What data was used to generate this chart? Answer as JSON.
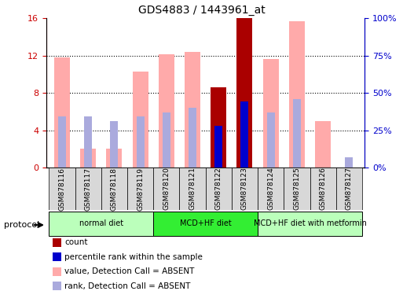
{
  "title": "GDS4883 / 1443961_at",
  "samples": [
    "GSM878116",
    "GSM878117",
    "GSM878118",
    "GSM878119",
    "GSM878120",
    "GSM878121",
    "GSM878122",
    "GSM878123",
    "GSM878124",
    "GSM878125",
    "GSM878126",
    "GSM878127"
  ],
  "value_absent": [
    11.8,
    2.0,
    2.0,
    10.3,
    12.1,
    12.4,
    null,
    null,
    11.6,
    15.7,
    5.0,
    null
  ],
  "rank_absent_pct": [
    34,
    34,
    31,
    34,
    37,
    40,
    null,
    null,
    37,
    46,
    null,
    7
  ],
  "count_present": [
    null,
    null,
    null,
    null,
    null,
    null,
    8.6,
    16.0,
    null,
    null,
    null,
    null
  ],
  "rank_present_pct": [
    null,
    null,
    null,
    null,
    null,
    null,
    28,
    44,
    null,
    null,
    null,
    null
  ],
  "protocol_groups": [
    {
      "label": "normal diet",
      "start": 0,
      "end": 3,
      "color": "#aaffaa"
    },
    {
      "label": "MCD+HF diet",
      "start": 4,
      "end": 7,
      "color": "#00ee00"
    },
    {
      "label": "MCD+HF diet with metformin",
      "start": 8,
      "end": 11,
      "color": "#aaffaa"
    }
  ],
  "left_ylim": [
    0,
    16
  ],
  "right_ylim": [
    0,
    100
  ],
  "left_yticks": [
    0,
    4,
    8,
    12,
    16
  ],
  "right_yticks": [
    0,
    25,
    50,
    75,
    100
  ],
  "right_yticklabels": [
    "0%",
    "25%",
    "50%",
    "75%",
    "100%"
  ],
  "color_value_absent": "#ffaaaa",
  "color_rank_absent": "#aaaadd",
  "color_count_present": "#aa0000",
  "color_rank_present": "#0000cc",
  "bar_width": 0.6,
  "rank_bar_width": 0.3,
  "left_axis_color": "#cc0000",
  "right_axis_color": "#0000cc",
  "protocol_label": "protocol",
  "sample_box_color": "#d8d8d8",
  "legend_items": [
    {
      "label": "count",
      "color": "#aa0000"
    },
    {
      "label": "percentile rank within the sample",
      "color": "#0000cc"
    },
    {
      "label": "value, Detection Call = ABSENT",
      "color": "#ffaaaa"
    },
    {
      "label": "rank, Detection Call = ABSENT",
      "color": "#aaaadd"
    }
  ]
}
